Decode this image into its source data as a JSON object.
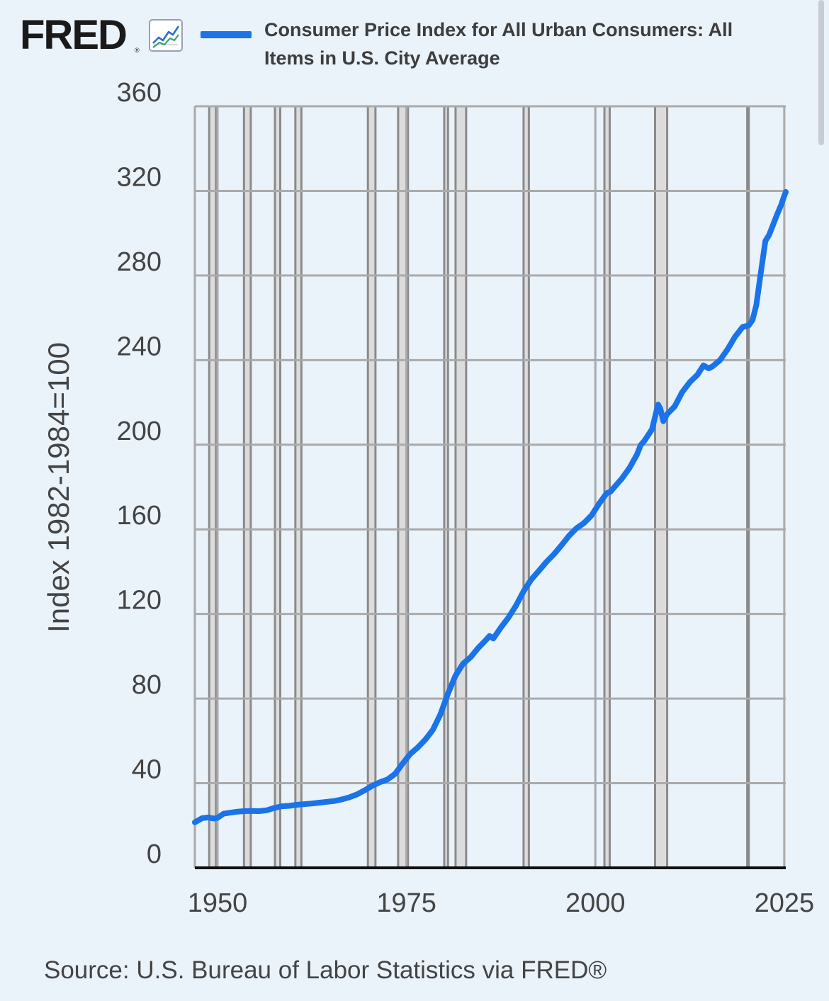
{
  "header": {
    "logo_text": "FRED",
    "logo_mark": "®",
    "logo_icon": "trend-line-icon",
    "series_label": "Consumer Price Index for All Urban Consumers: All Items in U.S. City Average"
  },
  "source_text": "Source: U.S. Bureau of Labor Statistics via FRED®",
  "colors": {
    "line": "#1a73e8",
    "recession": "#dcdcdc",
    "grid": "#aaaaaa",
    "background": "#eaf2fa"
  },
  "chart_data": {
    "type": "line",
    "title": "",
    "ylabel": "Index 1982-1984=100",
    "xlabel": "",
    "xlim": [
      1947.0,
      2025.2
    ],
    "ylim": [
      0,
      360
    ],
    "y_ticks": [
      0,
      40,
      80,
      120,
      160,
      200,
      240,
      280,
      320,
      360
    ],
    "x_ticks": [
      1950,
      1975,
      2000,
      2025
    ],
    "series": [
      {
        "name": "Consumer Price Index for All Urban Consumers: All Items in U.S. City Average",
        "x": [
          1947.0,
          1948.0,
          1948.8,
          1949.5,
          1950.0,
          1950.8,
          1951.5,
          1952.5,
          1953.5,
          1954.5,
          1955.5,
          1956.5,
          1957.5,
          1958.5,
          1959.5,
          1960.5,
          1961.5,
          1962.5,
          1963.5,
          1964.5,
          1965.5,
          1966.5,
          1967.5,
          1968.5,
          1969.5,
          1970.5,
          1971.5,
          1972.5,
          1973.5,
          1974.5,
          1975.5,
          1976.5,
          1977.5,
          1978.5,
          1979.5,
          1980.5,
          1981.5,
          1982.5,
          1983.5,
          1984.5,
          1985.5,
          1986.0,
          1986.5,
          1987.5,
          1988.5,
          1989.5,
          1990.5,
          1991.5,
          1992.5,
          1993.5,
          1994.5,
          1995.5,
          1996.5,
          1997.5,
          1998.5,
          1999.5,
          2000.5,
          2001.5,
          2002.0,
          2002.5,
          2003.5,
          2004.5,
          2005.5,
          2006.0,
          2006.5,
          2007.5,
          2008.3,
          2008.6,
          2009.0,
          2009.5,
          2010.5,
          2011.5,
          2012.5,
          2013.5,
          2014.3,
          2015.0,
          2015.5,
          2016.5,
          2017.5,
          2018.5,
          2019.5,
          2020.3,
          2020.8,
          2021.3,
          2021.8,
          2022.5,
          2023.0,
          2023.5,
          2024.0,
          2024.6,
          2025.0,
          2025.2
        ],
        "values": [
          21.5,
          23.5,
          23.8,
          23.3,
          23.6,
          25.6,
          26.0,
          26.5,
          26.8,
          26.9,
          26.8,
          27.2,
          28.3,
          29.1,
          29.3,
          29.8,
          30.1,
          30.4,
          30.8,
          31.2,
          31.6,
          32.4,
          33.4,
          34.8,
          36.7,
          38.8,
          40.5,
          41.8,
          44.4,
          49.3,
          53.8,
          56.9,
          60.6,
          65.2,
          72.6,
          82.4,
          90.9,
          96.5,
          99.6,
          103.9,
          107.6,
          109.6,
          108.4,
          113.6,
          118.3,
          124.0,
          130.7,
          136.2,
          140.3,
          144.5,
          148.2,
          152.4,
          156.9,
          160.5,
          163.0,
          166.6,
          172.2,
          177.1,
          177.8,
          179.9,
          184.0,
          188.9,
          195.3,
          199.8,
          201.9,
          207.3,
          219.0,
          217.0,
          211.1,
          214.5,
          218.1,
          224.9,
          229.6,
          233.0,
          237.5,
          236.1,
          237.0,
          240.0,
          245.1,
          251.1,
          255.7,
          256.4,
          259.0,
          266.0,
          278.8,
          296.3,
          299.2,
          303.8,
          308.4,
          313.5,
          317.7,
          319.5
        ]
      }
    ],
    "recessions": [
      [
        1948.9,
        1949.8
      ],
      [
        1953.5,
        1954.4
      ],
      [
        1957.6,
        1958.3
      ],
      [
        1960.3,
        1961.1
      ],
      [
        1969.9,
        1970.9
      ],
      [
        1973.9,
        1975.2
      ],
      [
        1980.0,
        1980.5
      ],
      [
        1981.5,
        1982.9
      ],
      [
        1990.5,
        1991.2
      ],
      [
        2001.2,
        2001.9
      ],
      [
        2007.9,
        2009.5
      ],
      [
        2020.1,
        2020.3
      ]
    ],
    "grid": true,
    "legend": "top"
  }
}
